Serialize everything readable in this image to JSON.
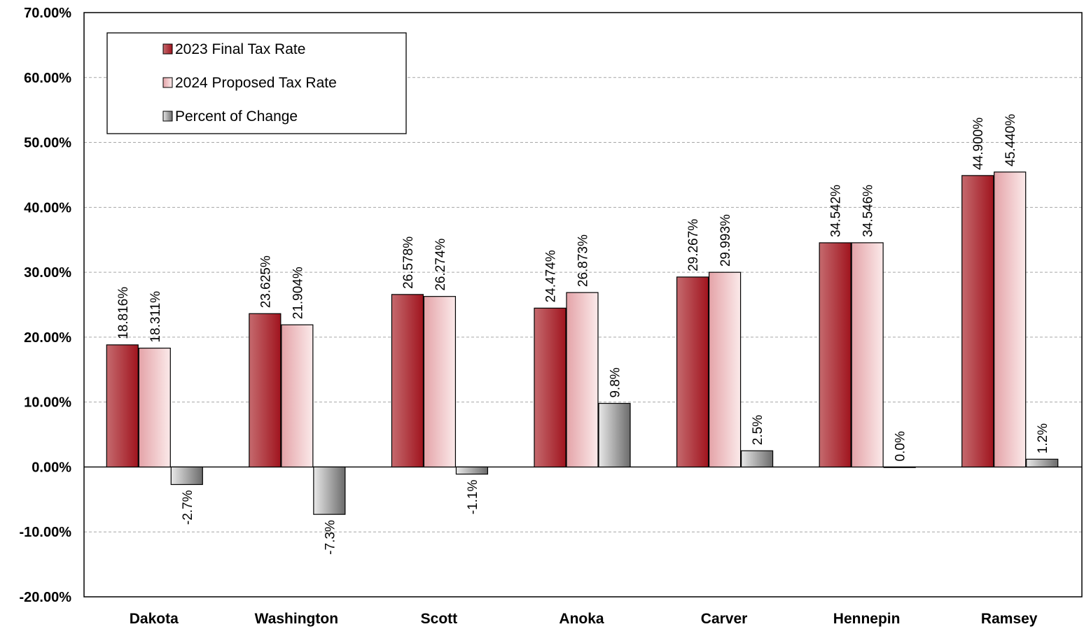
{
  "chart_data": {
    "type": "bar",
    "categories": [
      "Dakota",
      "Washington",
      "Scott",
      "Anoka",
      "Carver",
      "Hennepin",
      "Ramsey"
    ],
    "series": [
      {
        "name": "2023 Final Tax Rate",
        "values": [
          18.816,
          23.625,
          26.578,
          24.474,
          29.267,
          34.542,
          44.9
        ],
        "labels": [
          "18.816%",
          "23.625%",
          "26.578%",
          "24.474%",
          "29.267%",
          "34.542%",
          "44.900%"
        ],
        "colors": [
          "#c56a6e",
          "#a0141e"
        ]
      },
      {
        "name": "2024 Proposed Tax Rate",
        "values": [
          18.311,
          21.904,
          26.274,
          26.873,
          29.993,
          34.546,
          45.44
        ],
        "labels": [
          "18.311%",
          "21.904%",
          "26.274%",
          "26.873%",
          "29.993%",
          "34.546%",
          "45.440%"
        ],
        "colors": [
          "#e4a3a8",
          "#fbeaea"
        ]
      },
      {
        "name": "Percent of Change",
        "values": [
          -2.7,
          -7.3,
          -1.1,
          9.8,
          2.5,
          0.0,
          1.2
        ],
        "labels": [
          "-2.7%",
          "-7.3%",
          "-1.1%",
          "9.8%",
          "2.5%",
          "0.0%",
          "1.2%"
        ],
        "colors": [
          "#e8e8e8",
          "#6b6b6b"
        ]
      }
    ],
    "y_ticks": [
      "70.00%",
      "60.00%",
      "50.00%",
      "40.00%",
      "30.00%",
      "20.00%",
      "10.00%",
      "0.00%",
      "-10.00%",
      "-20.00%"
    ],
    "ylim": [
      -20,
      70
    ],
    "y_step": 10,
    "grid": true,
    "legend_position": "top-left",
    "title": "",
    "xlabel": "",
    "ylabel": ""
  }
}
